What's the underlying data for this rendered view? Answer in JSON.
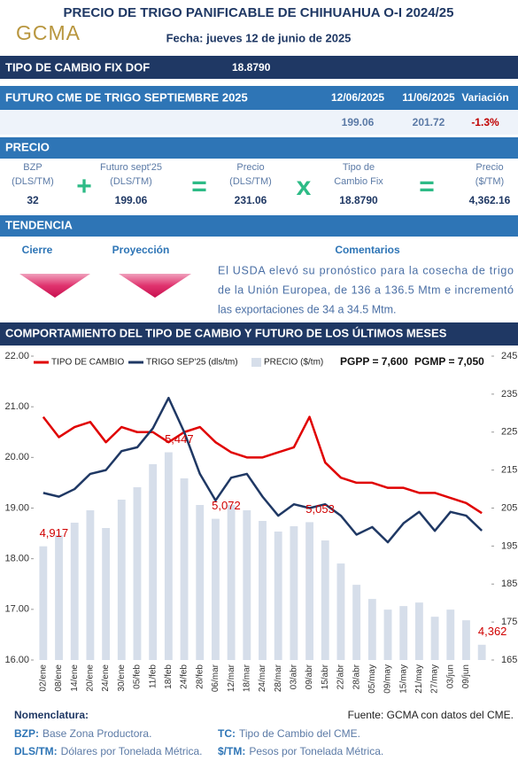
{
  "header": {
    "title": "PRECIO DE TRIGO PANIFICABLE DE CHIHUAHUA O-I 2024/25",
    "logo": "GCMA",
    "date": "Fecha: jueves 12 de junio de 2025"
  },
  "fx": {
    "label": "TIPO DE CAMBIO FIX  DOF",
    "value": "18.8790"
  },
  "futures": {
    "title": "FUTURO CME DE TRIGO SEPTIEMBRE 2025",
    "columns": [
      "12/06/2025",
      "11/06/2025",
      "Variación"
    ],
    "values": [
      "199.06",
      "201.72",
      "-1.3%"
    ]
  },
  "price": {
    "title": "PRECIO",
    "items": [
      {
        "label": [
          "BZP",
          "(DLS/TM)"
        ],
        "value": "32"
      },
      {
        "label": [
          "Futuro sept'25",
          "(DLS/TM)"
        ],
        "value": "199.06"
      },
      {
        "label": [
          "Precio",
          "(DLS/TM)"
        ],
        "value": "231.06"
      },
      {
        "label": [
          "Tipo de",
          "Cambio Fix"
        ],
        "value": "18.8790"
      },
      {
        "label": [
          "Precio",
          "($/TM)"
        ],
        "value": "4,362.16"
      }
    ],
    "operators": [
      "+",
      "=",
      "x",
      "="
    ]
  },
  "trend": {
    "title": "TENDENCIA",
    "columns": [
      "Cierre",
      "Proyección",
      "Comentarios"
    ],
    "comment": [
      "El USDA elevó su pronóstico para la cosecha de trigo",
      "de la Unión Europea, de 136 a 136.5 Mtm e incrementó",
      "las exportaciones de 34 a 34.5 Mtm."
    ]
  },
  "chart_data": {
    "type": "combo",
    "title": "COMPORTAMIENTO DEL TIPO DE CAMBIO Y FUTURO DE LOS ÚLTIMOS MESES",
    "categories": [
      "02/ene",
      "08/ene",
      "14/ene",
      "20/ene",
      "24/ene",
      "30/ene",
      "05/feb",
      "11/feb",
      "18/feb",
      "24/feb",
      "28/feb",
      "06/mar",
      "12/mar",
      "18/mar",
      "24/mar",
      "28/mar",
      "03/abr",
      "09/abr",
      "15/abr",
      "22/abr",
      "28/abr",
      "05/may",
      "09/may",
      "15/may",
      "21/may",
      "27/may",
      "03/jun",
      "09/jun",
      null
    ],
    "series": [
      {
        "name": "PRECIO ($/tm)",
        "type": "bar",
        "axis": "y3",
        "color": "#d6deea",
        "values": [
          4917,
          4980,
          5050,
          5120,
          5020,
          5180,
          5250,
          5380,
          5447,
          5300,
          5150,
          5072,
          5150,
          5120,
          5060,
          5000,
          5030,
          5053,
          4950,
          4820,
          4700,
          4620,
          4560,
          4580,
          4600,
          4520,
          4560,
          4500,
          4362
        ],
        "value_labels": [
          "4,917",
          null,
          null,
          null,
          null,
          null,
          null,
          null,
          "5,447",
          null,
          null,
          "5,072",
          null,
          null,
          null,
          null,
          null,
          "5,053",
          null,
          null,
          null,
          null,
          null,
          null,
          null,
          null,
          null,
          null,
          "4,362"
        ]
      },
      {
        "name": "TIPO DE CAMBIO",
        "type": "line",
        "color": "#e00000",
        "values": [
          20.8,
          20.4,
          20.6,
          20.7,
          20.3,
          20.6,
          20.5,
          20.5,
          20.3,
          20.5,
          20.6,
          20.3,
          20.1,
          20.0,
          20.0,
          20.1,
          20.2,
          20.8,
          19.9,
          19.6,
          19.5,
          19.5,
          19.4,
          19.4,
          19.3,
          19.3,
          19.2,
          19.1,
          18.9
        ]
      },
      {
        "name": "TRIGO SEP'25 (dls/tm)",
        "type": "line",
        "axis": "y2",
        "color": "#1f3864",
        "values": [
          209,
          208,
          210,
          214,
          215,
          220,
          221,
          226,
          234,
          225,
          214,
          207,
          213,
          214,
          208,
          203,
          206,
          205,
          206,
          203,
          198,
          200,
          196,
          201,
          204,
          199,
          204,
          203,
          199.06
        ]
      }
    ],
    "ylim": [
      16,
      22
    ],
    "yticks": [
      {
        "value": 16,
        "label": "16.00"
      },
      {
        "value": 17,
        "label": "17.00"
      },
      {
        "value": 18,
        "label": "18.00"
      },
      {
        "value": 19,
        "label": "19.00"
      },
      {
        "value": 20,
        "label": "20.00"
      },
      {
        "value": 21,
        "label": "21.00"
      },
      {
        "value": 22,
        "label": "22.00"
      }
    ],
    "y2lim": [
      165,
      245
    ],
    "y2ticks": [
      165,
      175,
      185,
      195,
      205,
      215,
      225,
      235,
      245
    ],
    "y3lim": [
      4276,
      5989
    ],
    "grid": false,
    "annotations": [
      "PGPP = 7,600",
      "PGMP = 7,050"
    ]
  },
  "footer": {
    "heading": "Nomenclatura:",
    "source": "Fuente: GCMA con datos del CME.",
    "items": [
      [
        "BZP:",
        "Base Zona Productora."
      ],
      [
        "TC:",
        "Tipo de Cambio del CME."
      ],
      [
        "DLS/TM:",
        "Dólares por Tonelada Métrica."
      ],
      [
        "$/TM:",
        "Pesos por Tonelada Métrica."
      ]
    ]
  }
}
